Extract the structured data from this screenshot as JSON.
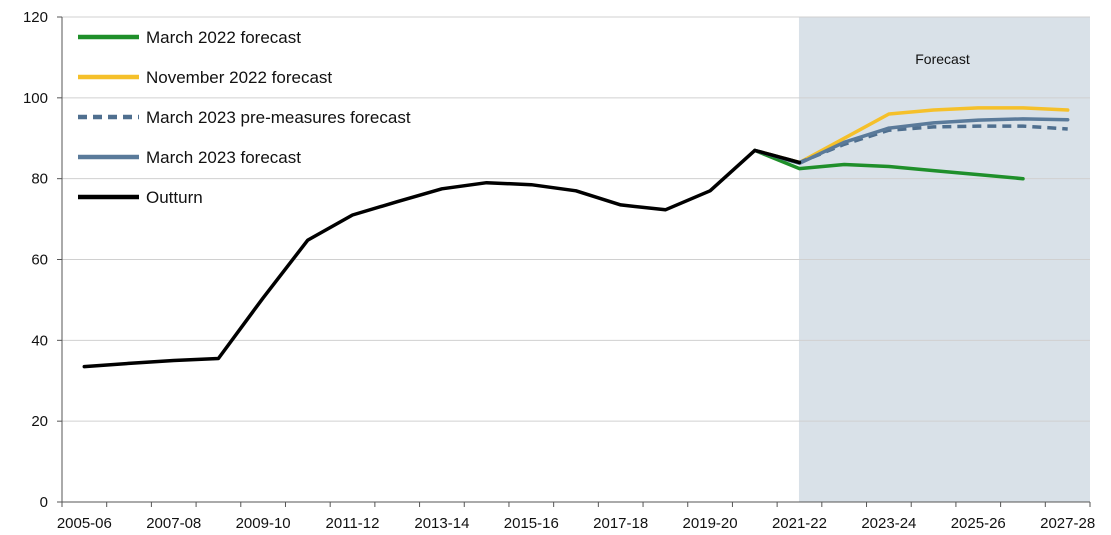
{
  "chart_data": {
    "type": "line",
    "xlabel": "",
    "ylabel": "",
    "ylim": [
      0,
      120
    ],
    "y_ticks": [
      0,
      20,
      40,
      60,
      80,
      100,
      120
    ],
    "x_tick_labels": [
      "2005-06",
      "2007-08",
      "2009-10",
      "2011-12",
      "2013-14",
      "2015-16",
      "2017-18",
      "2019-20",
      "2021-22",
      "2023-24",
      "2025-26",
      "2027-28"
    ],
    "x_categories": [
      "2005-06",
      "2006-07",
      "2007-08",
      "2008-09",
      "2009-10",
      "2010-11",
      "2011-12",
      "2012-13",
      "2013-14",
      "2014-15",
      "2015-16",
      "2016-17",
      "2017-18",
      "2018-19",
      "2019-20",
      "2020-21",
      "2021-22",
      "2022-23",
      "2023-24",
      "2024-25",
      "2025-26",
      "2026-27",
      "2027-28"
    ],
    "grid": "horizontal",
    "legend_position": "top-left",
    "forecast_region": {
      "start": "2021-22",
      "end": "2027-28",
      "label": "Forecast",
      "color": "#d9e1e8"
    },
    "series": [
      {
        "name": "March 2022 forecast",
        "color": "#1f8f2a",
        "style": "solid",
        "points": [
          [
            "2020-21",
            87
          ],
          [
            "2021-22",
            82.5
          ],
          [
            "2022-23",
            83.5
          ],
          [
            "2023-24",
            83
          ],
          [
            "2024-25",
            82
          ],
          [
            "2025-26",
            81
          ],
          [
            "2026-27",
            80
          ]
        ]
      },
      {
        "name": "November 2022 forecast",
        "color": "#f5c02a",
        "style": "solid",
        "points": [
          [
            "2020-21",
            87
          ],
          [
            "2021-22",
            84
          ],
          [
            "2022-23",
            90
          ],
          [
            "2023-24",
            96
          ],
          [
            "2024-25",
            97
          ],
          [
            "2025-26",
            97.5
          ],
          [
            "2026-27",
            97.5
          ],
          [
            "2027-28",
            97
          ]
        ]
      },
      {
        "name": "March 2023 pre-measures forecast",
        "color": "#4f6f8f",
        "style": "dashed",
        "points": [
          [
            "2020-21",
            87
          ],
          [
            "2021-22",
            84
          ],
          [
            "2022-23",
            88.5
          ],
          [
            "2023-24",
            92
          ],
          [
            "2024-25",
            92.8
          ],
          [
            "2025-26",
            93
          ],
          [
            "2026-27",
            93
          ],
          [
            "2027-28",
            92.3
          ]
        ]
      },
      {
        "name": "March 2023 forecast",
        "color": "#5a7a9a",
        "style": "solid",
        "points": [
          [
            "2020-21",
            87
          ],
          [
            "2021-22",
            83.8
          ],
          [
            "2022-23",
            89
          ],
          [
            "2023-24",
            92.5
          ],
          [
            "2024-25",
            93.8
          ],
          [
            "2025-26",
            94.5
          ],
          [
            "2026-27",
            94.8
          ],
          [
            "2027-28",
            94.6
          ]
        ]
      },
      {
        "name": "Outturn",
        "color": "#000000",
        "style": "solid",
        "points": [
          [
            "2005-06",
            33.5
          ],
          [
            "2006-07",
            34.3
          ],
          [
            "2007-08",
            35
          ],
          [
            "2008-09",
            35.5
          ],
          [
            "2009-10",
            50.5
          ],
          [
            "2010-11",
            64.8
          ],
          [
            "2011-12",
            71
          ],
          [
            "2012-13",
            74.3
          ],
          [
            "2013-14",
            77.5
          ],
          [
            "2014-15",
            79
          ],
          [
            "2015-16",
            78.5
          ],
          [
            "2016-17",
            77
          ],
          [
            "2017-18",
            73.5
          ],
          [
            "2018-19",
            72.3
          ],
          [
            "2019-20",
            77
          ],
          [
            "2020-21",
            87
          ],
          [
            "2021-22",
            84
          ]
        ]
      }
    ]
  }
}
